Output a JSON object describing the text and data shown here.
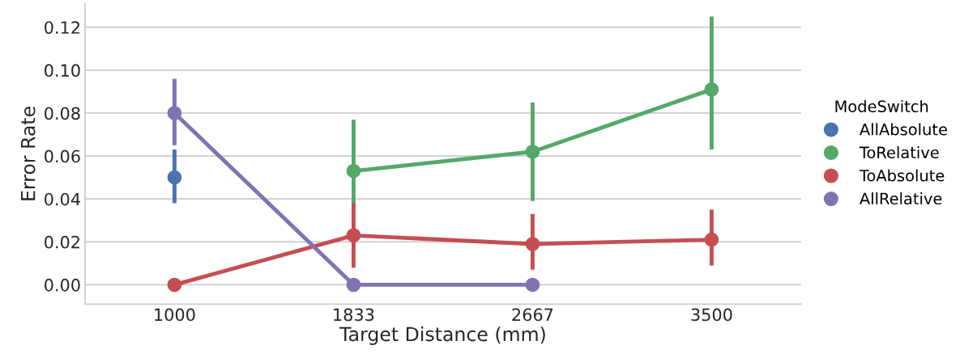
{
  "chart_data": {
    "type": "line",
    "xlabel": "Target Distance (mm)",
    "ylabel": "Error Rate",
    "legend_title": "ModeSwitch",
    "categories": [
      "1000",
      "1833",
      "2667",
      "3500"
    ],
    "series": [
      {
        "name": "AllAbsolute",
        "color": "#4c72b0",
        "values": [
          0.05,
          null,
          null,
          null
        ],
        "errors": [
          [
            0.038,
            0.063
          ],
          null,
          null,
          null
        ]
      },
      {
        "name": "ToRelative",
        "color": "#55a868",
        "values": [
          null,
          0.053,
          0.062,
          0.091
        ],
        "errors": [
          null,
          [
            0.037,
            0.077
          ],
          [
            0.039,
            0.085
          ],
          [
            0.063,
            0.125
          ]
        ]
      },
      {
        "name": "ToAbsolute",
        "color": "#c44e52",
        "values": [
          0.0,
          0.023,
          0.019,
          0.021
        ],
        "errors": [
          null,
          [
            0.008,
            0.038
          ],
          [
            0.007,
            0.033
          ],
          [
            0.009,
            0.035
          ]
        ]
      },
      {
        "name": "AllRelative",
        "color": "#8172b2",
        "values": [
          0.08,
          0.0,
          0.0,
          null
        ],
        "errors": [
          [
            0.065,
            0.096
          ],
          null,
          null,
          null
        ]
      }
    ],
    "ylim": [
      -0.009,
      0.131
    ],
    "yticks": [
      {
        "value": 0,
        "label": "0.00"
      },
      {
        "value": 0.02,
        "label": "0.02"
      },
      {
        "value": 0.04,
        "label": "0.04"
      },
      {
        "value": 0.06,
        "label": "0.06"
      },
      {
        "value": 0.08,
        "label": "0.08"
      },
      {
        "value": 0.1,
        "label": "0.10"
      },
      {
        "value": 0.12,
        "label": "0.12"
      }
    ],
    "grid": "y",
    "legend": "right",
    "marker": "circle",
    "line_style": "solid"
  }
}
